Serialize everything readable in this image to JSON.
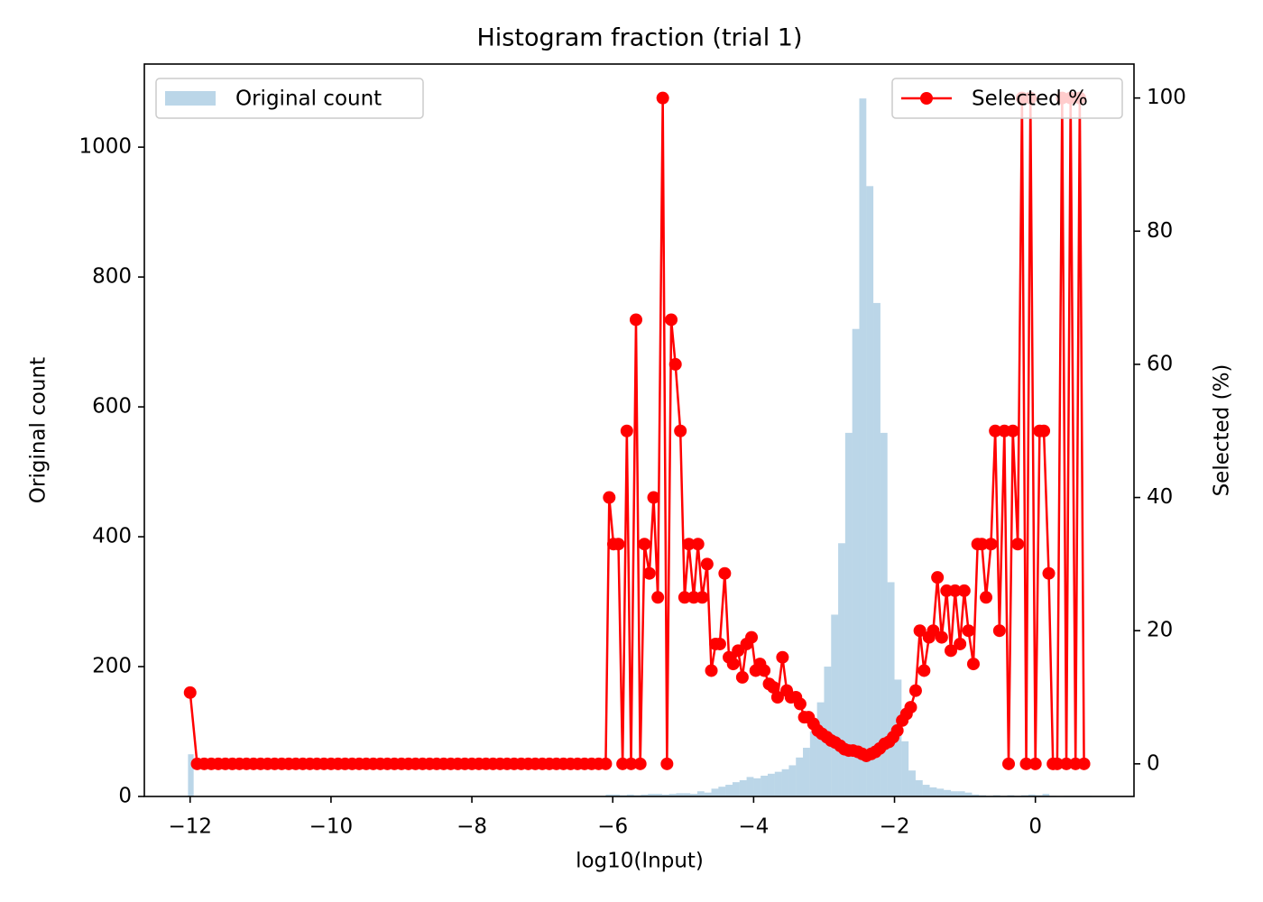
{
  "chart_data": {
    "type": "histogram",
    "title": "Histogram fraction (trial 1)",
    "xlabel": "log10(Input)",
    "ylabel": "Original count",
    "y2label": "Selected (%)",
    "xlim": [
      -12.65,
      1.4
    ],
    "ylim": [
      0,
      1128
    ],
    "y2lim": [
      -4.9,
      105.1
    ],
    "xticks": [
      {
        "value": -12,
        "label": "−12"
      },
      {
        "value": -10,
        "label": "−10"
      },
      {
        "value": -8,
        "label": "−8"
      },
      {
        "value": -6,
        "label": "−6"
      },
      {
        "value": -4,
        "label": "−4"
      },
      {
        "value": -2,
        "label": "−2"
      },
      0
    ],
    "yticks": [
      0,
      200,
      400,
      600,
      800,
      1000
    ],
    "y2ticks": [
      0,
      20,
      40,
      60,
      80,
      100
    ],
    "bins": [
      -12.03,
      -11.95,
      -6.1,
      -6.0,
      -5.9,
      -5.8,
      -5.7,
      -5.6,
      -5.5,
      -5.4,
      -5.3,
      -5.2,
      -5.1,
      -5.0,
      -4.9,
      -4.8,
      -4.7,
      -4.6,
      -4.5,
      -4.4,
      -4.3,
      -4.2,
      -4.1,
      -4.0,
      -3.9,
      -3.8,
      -3.7,
      -3.6,
      -3.5,
      -3.4,
      -3.3,
      -3.2,
      -3.1,
      -3.0,
      -2.9,
      -2.8,
      -2.7,
      -2.6,
      -2.5,
      -2.4,
      -2.3,
      -2.2,
      -2.1,
      -2.0,
      -1.9,
      -1.8,
      -1.7,
      -1.6,
      -1.5,
      -1.4,
      -1.3,
      -1.2,
      -1.1,
      -1.0,
      -0.9,
      -0.8,
      -0.7,
      -0.6,
      -0.5,
      -0.4,
      -0.3,
      -0.2,
      -0.1,
      0,
      0.1,
      0.2,
      0.3,
      0.4,
      0.5,
      0.6,
      0.7,
      0.8
    ],
    "series": [
      {
        "name": "Original count",
        "type": "histogram",
        "color": "#1f77b4",
        "opacity": 0.3,
        "legend": "upper left",
        "values": [
          65,
          0,
          3,
          3,
          2,
          3,
          2,
          3,
          4,
          4,
          3,
          4,
          5,
          5,
          4,
          8,
          6,
          12,
          15,
          18,
          22,
          25,
          30,
          28,
          32,
          35,
          38,
          42,
          48,
          60,
          75,
          100,
          145,
          200,
          280,
          390,
          560,
          720,
          1075,
          940,
          760,
          560,
          330,
          180,
          85,
          40,
          25,
          18,
          14,
          12,
          10,
          8,
          8,
          6,
          3,
          2,
          1,
          2,
          1,
          2,
          1,
          2,
          3,
          2,
          4,
          1,
          0,
          1,
          1,
          1,
          1
        ]
      },
      {
        "name": "Selected %",
        "type": "line",
        "axis": "y2",
        "color": "#ff0000",
        "marker": "o",
        "legend": "upper right",
        "x": [
          -12.0,
          -11.9,
          -11.8,
          -11.7,
          -11.6,
          -11.5,
          -11.4,
          -11.3,
          -11.2,
          -11.1,
          -11.0,
          -10.9,
          -10.8,
          -10.7,
          -10.6,
          -10.5,
          -10.4,
          -10.3,
          -10.2,
          -10.1,
          -10.0,
          -9.9,
          -9.8,
          -9.7,
          -9.6,
          -9.5,
          -9.4,
          -9.3,
          -9.2,
          -9.1,
          -9.0,
          -8.9,
          -8.8,
          -8.7,
          -8.6,
          -8.5,
          -8.4,
          -8.3,
          -8.2,
          -8.1,
          -8.0,
          -7.9,
          -7.8,
          -7.7,
          -7.6,
          -7.5,
          -7.4,
          -7.3,
          -7.2,
          -7.1,
          -7.0,
          -6.9,
          -6.8,
          -6.7,
          -6.6,
          -6.5,
          -6.4,
          -6.3,
          -6.2,
          -6.1,
          -6.05,
          -5.99,
          -5.92,
          -5.86,
          -5.8,
          -5.74,
          -5.67,
          -5.61,
          -5.55,
          -5.48,
          -5.42,
          -5.36,
          -5.29,
          -5.23,
          -5.17,
          -5.11,
          -5.04,
          -4.98,
          -4.92,
          -4.85,
          -4.79,
          -4.73,
          -4.66,
          -4.6,
          -4.54,
          -4.48,
          -4.41,
          -4.35,
          -4.29,
          -4.22,
          -4.16,
          -4.1,
          -4.03,
          -3.97,
          -3.91,
          -3.85,
          -3.78,
          -3.72,
          -3.66,
          -3.59,
          -3.53,
          -3.47,
          -3.4,
          -3.34,
          -3.28,
          -3.22,
          -3.15,
          -3.09,
          -3.03,
          -2.96,
          -2.9,
          -2.84,
          -2.77,
          -2.71,
          -2.65,
          -2.59,
          -2.52,
          -2.46,
          -2.4,
          -2.33,
          -2.27,
          -2.21,
          -2.14,
          -2.08,
          -2.02,
          -1.96,
          -1.89,
          -1.83,
          -1.77,
          -1.7,
          -1.64,
          -1.58,
          -1.51,
          -1.45,
          -1.39,
          -1.33,
          -1.26,
          -1.2,
          -1.14,
          -1.07,
          -1.01,
          -0.95,
          -0.88,
          -0.82,
          -0.76,
          -0.7,
          -0.63,
          -0.57,
          -0.51,
          -0.44,
          -0.38,
          -0.32,
          -0.25,
          -0.19,
          -0.13,
          -0.07,
          0,
          0.06,
          0.12,
          0.19,
          0.25,
          0.31,
          0.38,
          0.44,
          0.5,
          0.57,
          0.63,
          0.69
        ],
        "values": [
          10.7,
          0,
          0,
          0,
          0,
          0,
          0,
          0,
          0,
          0,
          0,
          0,
          0,
          0,
          0,
          0,
          0,
          0,
          0,
          0,
          0,
          0,
          0,
          0,
          0,
          0,
          0,
          0,
          0,
          0,
          0,
          0,
          0,
          0,
          0,
          0,
          0,
          0,
          0,
          0,
          0,
          0,
          0,
          0,
          0,
          0,
          0,
          0,
          0,
          0,
          0,
          0,
          0,
          0,
          0,
          0,
          0,
          0,
          0,
          0,
          40,
          33,
          33,
          0,
          50,
          0,
          66.7,
          0,
          33,
          28.6,
          40,
          25,
          100,
          0,
          66.7,
          60,
          50,
          25,
          33,
          25,
          33,
          25,
          30,
          14,
          18,
          18,
          28.6,
          16,
          15,
          17,
          13,
          18,
          19,
          14,
          15,
          14,
          12,
          11.5,
          10,
          16,
          11,
          10,
          10,
          9,
          7,
          7,
          6,
          5,
          4.5,
          4,
          3.5,
          3.2,
          2.7,
          2.2,
          2,
          2,
          1.8,
          1.5,
          1.2,
          1.5,
          1.8,
          2.3,
          3,
          3.3,
          4,
          5,
          6.5,
          7.5,
          8.5,
          11,
          20,
          14,
          19,
          20,
          28,
          19,
          26,
          17,
          26,
          18,
          26,
          20,
          15,
          33,
          33,
          25,
          33,
          50,
          20,
          50,
          0,
          50,
          33,
          100,
          0,
          100,
          0,
          50,
          50,
          28.6,
          0,
          0,
          100,
          0,
          100,
          0,
          100,
          0
        ]
      }
    ]
  }
}
